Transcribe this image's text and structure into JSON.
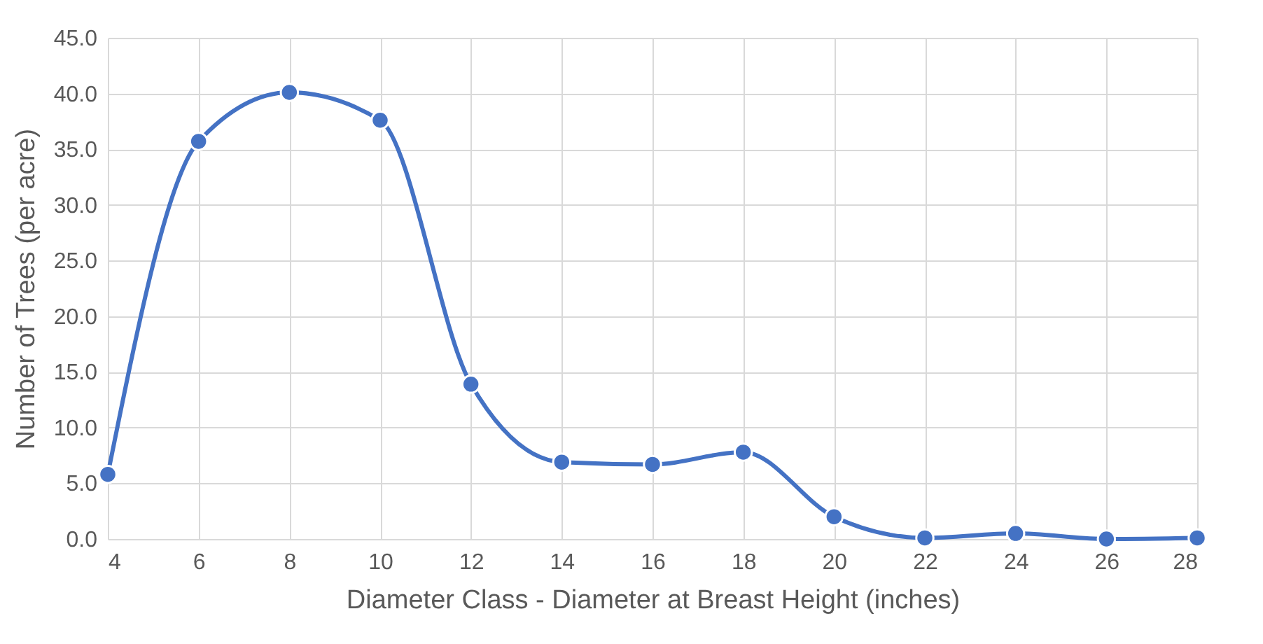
{
  "chart_data": {
    "type": "line",
    "xlabel": "Diameter Class - Diameter at Breast Height (inches)",
    "ylabel": "Number of Trees (per acre)",
    "x": [
      4,
      6,
      8,
      10,
      12,
      14,
      16,
      18,
      20,
      22,
      24,
      26,
      28
    ],
    "series": [
      {
        "color": "#4472c4",
        "values": [
          5.8,
          35.7,
          40.1,
          37.6,
          13.9,
          6.9,
          6.7,
          7.8,
          2.0,
          0.1,
          0.5,
          0,
          0.1
        ]
      }
    ],
    "xlim": [
      4,
      28
    ],
    "xticks": [
      4,
      6,
      8,
      10,
      12,
      14,
      16,
      18,
      20,
      22,
      24,
      26,
      28
    ],
    "ylim": [
      0,
      45
    ],
    "yticks": [
      {
        "value": 0,
        "label": "0.0"
      },
      {
        "value": 5,
        "label": "5.0"
      },
      {
        "value": 10,
        "label": "10.0"
      },
      {
        "value": 15,
        "label": "15.0"
      },
      {
        "value": 20,
        "label": "20.0"
      },
      {
        "value": 25,
        "label": "25.0"
      },
      {
        "value": 30,
        "label": "30.0"
      },
      {
        "value": 35,
        "label": "35.0"
      },
      {
        "value": 40,
        "label": "40.0"
      },
      {
        "value": 45,
        "label": "45.0"
      }
    ],
    "grid": true,
    "marker": "circle"
  }
}
